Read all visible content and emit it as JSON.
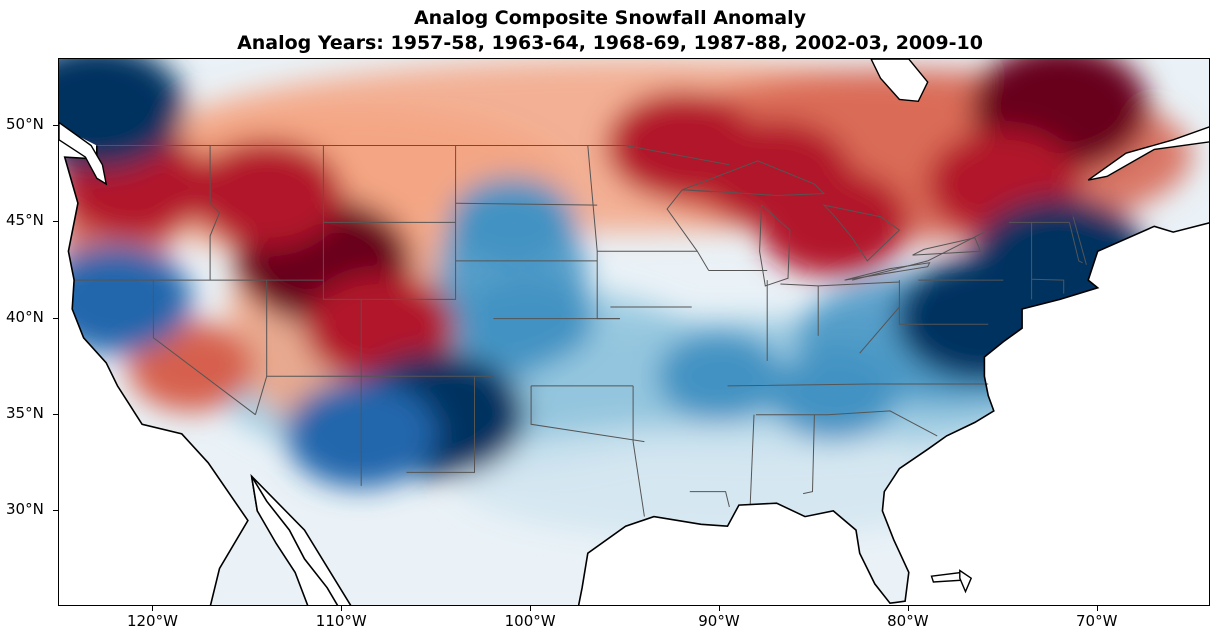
{
  "title": {
    "line1": "Analog Composite Snowfall Anomaly",
    "line2": "Analog Years: 1957-58, 1963-64, 1968-69, 1987-88, 2002-03, 2009-10"
  },
  "map": {
    "projection": "PlateCarree",
    "extent_lon": [
      -125,
      -64
    ],
    "extent_lat": [
      25,
      53.5
    ],
    "colormap": "RdBu (red = positive snowfall anomaly, blue = negative)",
    "colors": {
      "deep_red": "#67001f",
      "red": "#b2182b",
      "mid_red": "#d6604d",
      "light_red": "#f4a582",
      "pale_red": "#fddbc7",
      "neutral": "#f7f7f7",
      "pale_blue": "#d1e5f0",
      "light_blue": "#92c5de",
      "mid_blue": "#4393c3",
      "blue": "#2166ac",
      "deep_blue": "#053061"
    },
    "lat_ticks": [
      {
        "value": 50,
        "label": "50°N"
      },
      {
        "value": 45,
        "label": "45°N"
      },
      {
        "value": 40,
        "label": "40°N"
      },
      {
        "value": 35,
        "label": "35°N"
      },
      {
        "value": 30,
        "label": "30°N"
      }
    ],
    "lon_ticks": [
      {
        "value": -120,
        "label": "120°W"
      },
      {
        "value": -110,
        "label": "110°W"
      },
      {
        "value": -100,
        "label": "100°W"
      },
      {
        "value": -90,
        "label": "90°W"
      },
      {
        "value": -80,
        "label": "80°W"
      },
      {
        "value": -70,
        "label": "70°W"
      }
    ],
    "anomaly_features": [
      {
        "lon": -72,
        "lat": 51,
        "level": 5
      },
      {
        "lon": -87,
        "lat": 47.5,
        "level": 4
      },
      {
        "lon": -84,
        "lat": 45,
        "level": 4
      },
      {
        "lon": -92,
        "lat": 49,
        "level": 4
      },
      {
        "lon": -75,
        "lat": 47,
        "level": 4
      },
      {
        "lon": -111,
        "lat": 43,
        "level": 5
      },
      {
        "lon": -114,
        "lat": 46.5,
        "level": 4
      },
      {
        "lon": -121,
        "lat": 47,
        "level": 4
      },
      {
        "lon": -108,
        "lat": 39.5,
        "level": 4
      },
      {
        "lon": -118,
        "lat": 37.5,
        "level": 3
      },
      {
        "lon": -123,
        "lat": 51,
        "level": -5
      },
      {
        "lon": -76,
        "lat": 40,
        "level": -5
      },
      {
        "lon": -72,
        "lat": 43,
        "level": -5
      },
      {
        "lon": -105,
        "lat": 35,
        "level": -5
      },
      {
        "lon": -109,
        "lat": 34,
        "level": -4
      },
      {
        "lon": -100,
        "lat": 40,
        "level": -3
      },
      {
        "lon": -101,
        "lat": 45,
        "level": -3
      },
      {
        "lon": -90,
        "lat": 37,
        "level": -3
      },
      {
        "lon": -84,
        "lat": 36,
        "level": -3
      },
      {
        "lon": -122,
        "lat": 41,
        "level": -4
      }
    ]
  }
}
